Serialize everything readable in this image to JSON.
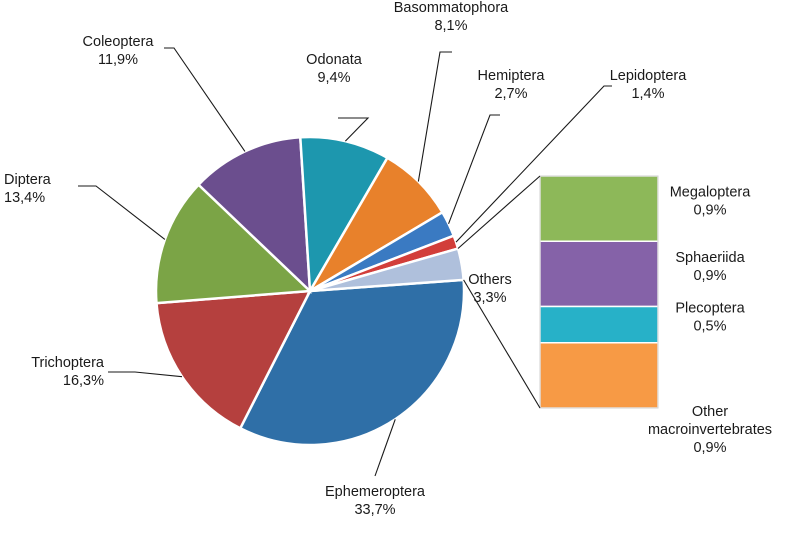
{
  "chart_data": {
    "type": "pie",
    "title": "",
    "slices": [
      {
        "label": "Ephemeroptera",
        "value_text": "33,7%",
        "value": 33.7,
        "color": "#2F6FA7"
      },
      {
        "label": "Trichoptera",
        "value_text": "16,3%",
        "value": 16.3,
        "color": "#B5403E"
      },
      {
        "label": "Diptera",
        "value_text": "13,4%",
        "value": 13.4,
        "color": "#7BA446"
      },
      {
        "label": "Coleoptera",
        "value_text": "11,9%",
        "value": 11.9,
        "color": "#6B4E8E"
      },
      {
        "label": "Odonata",
        "value_text": "9,4%",
        "value": 9.4,
        "color": "#1D97AE"
      },
      {
        "label": "Basommatophora",
        "value_text": "8,1%",
        "value": 8.1,
        "color": "#E8812B"
      },
      {
        "label": "Hemiptera",
        "value_text": "2,7%",
        "value": 2.7,
        "color": "#3A7AC2"
      },
      {
        "label": "Lepidoptera",
        "value_text": "1,4%",
        "value": 1.4,
        "color": "#D23E3A"
      },
      {
        "label": "Others",
        "value_text": "3,3%",
        "value": 3.3,
        "color": "#AFC0DC"
      }
    ],
    "breakdown": {
      "of": "Others",
      "segments": [
        {
          "label": "Megaloptera",
          "value_text": "0,9%",
          "value": 0.9,
          "color": "#8DB859"
        },
        {
          "label": "Sphaeriida",
          "value_text": "0,9%",
          "value": 0.9,
          "color": "#8562A8"
        },
        {
          "label": "Plecoptera",
          "value_text": "0,5%",
          "value": 0.5,
          "color": "#27B1C8"
        },
        {
          "label": "Other macroinvertebrates",
          "label_lines": [
            "Other",
            "macroinvertebrates"
          ],
          "value_text": "0,9%",
          "value": 0.9,
          "color": "#F79A45"
        }
      ]
    },
    "legend": "none"
  }
}
